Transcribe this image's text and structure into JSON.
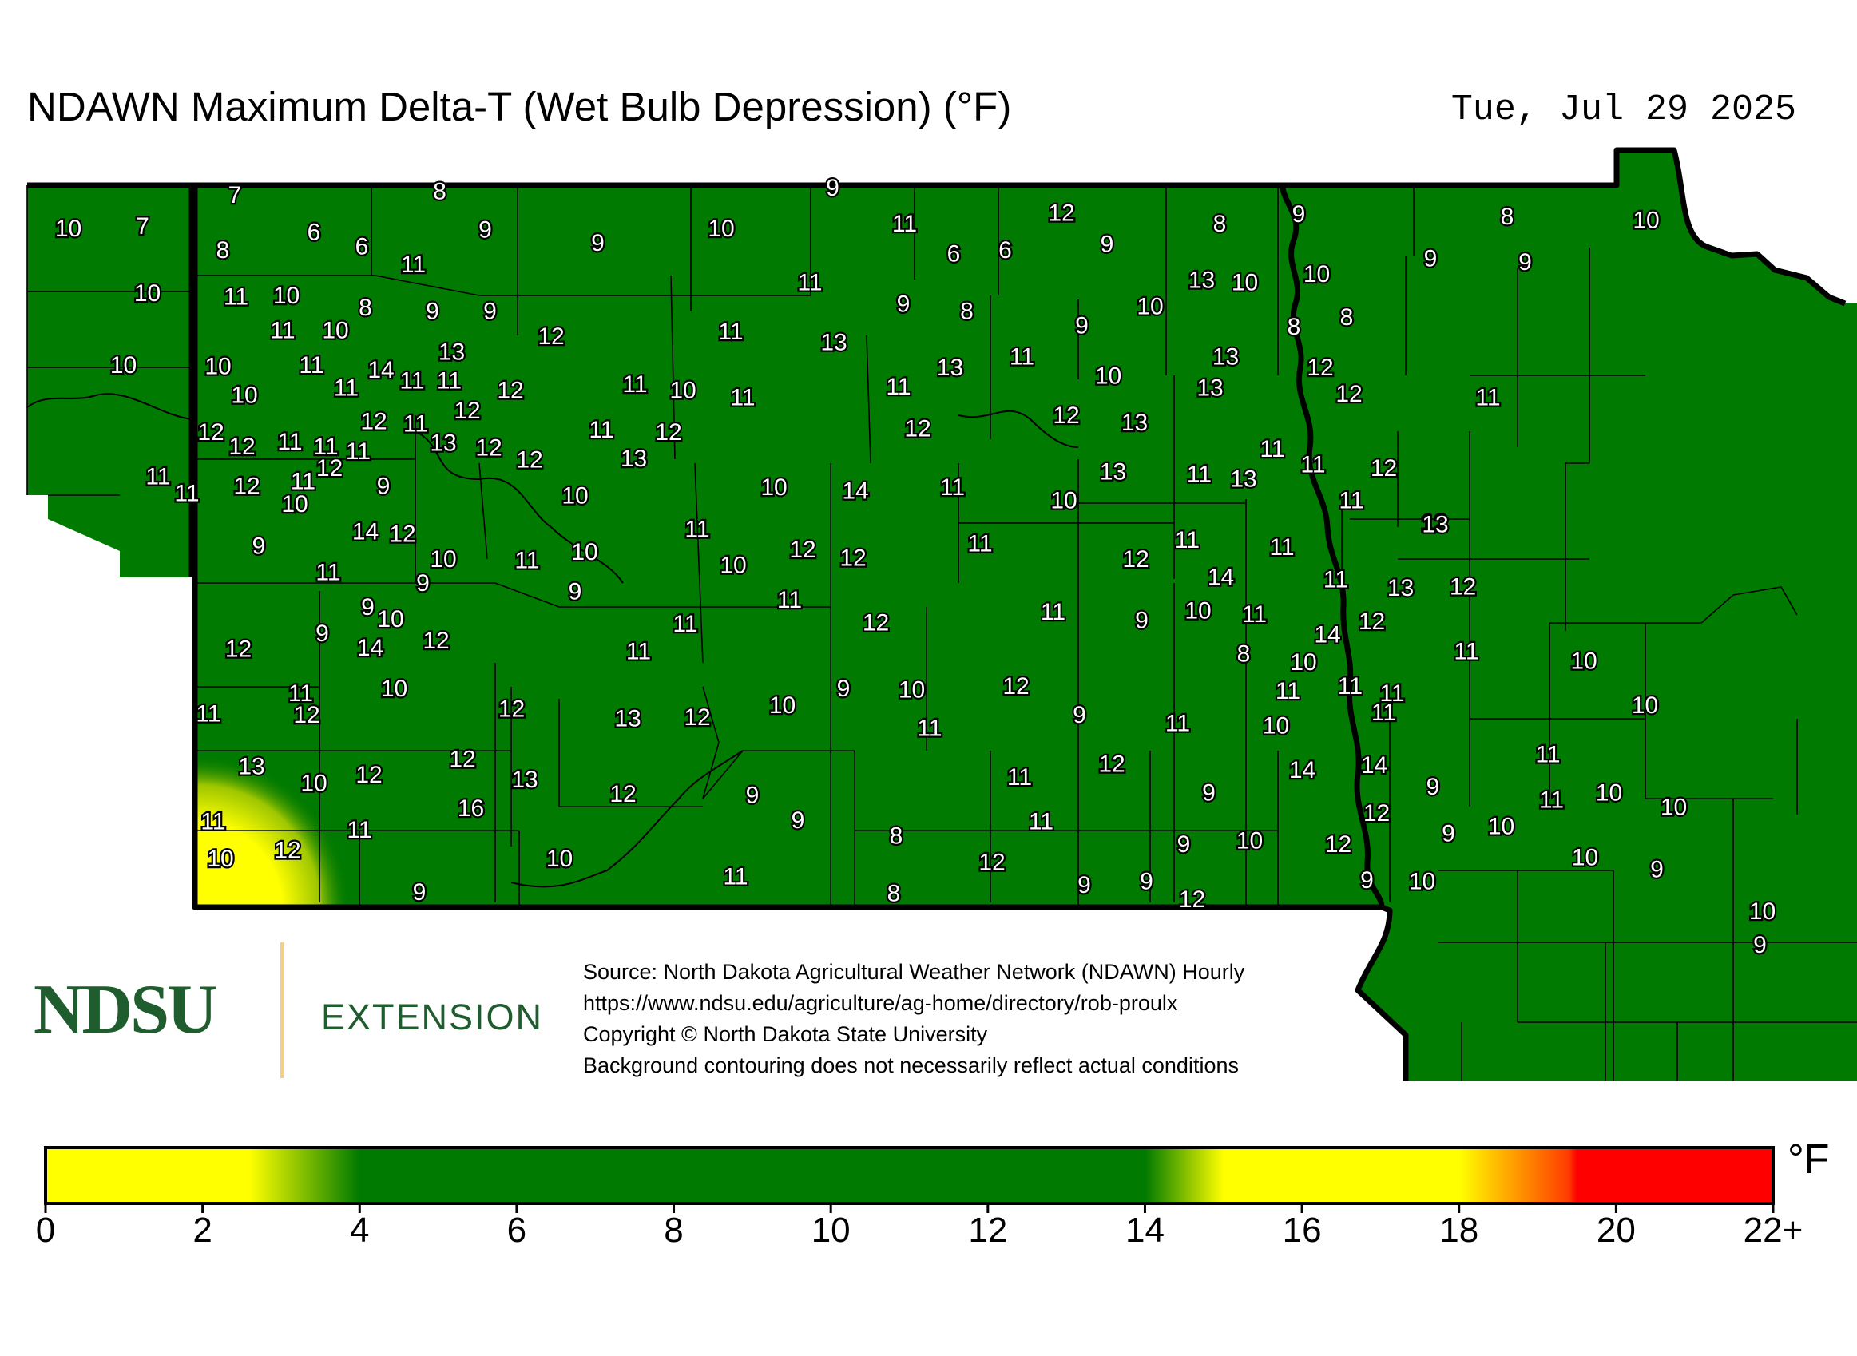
{
  "title": "NDAWN Maximum Delta-T (Wet Bulb Depression) (°F)",
  "date": "Tue, Jul 29 2025",
  "logo": {
    "ndsu": "NDSU",
    "extension": "EXTENSION"
  },
  "source_lines": [
    "Source: North Dakota Agricultural Weather Network (NDAWN) Hourly",
    "https://www.ndsu.edu/agriculture/ag-home/directory/rob-proulx",
    "Copyright © North Dakota State University",
    "Background contouring does not necessarily reflect actual conditions"
  ],
  "colorbar": {
    "unit": "°F",
    "ticks": [
      "0",
      "2",
      "4",
      "6",
      "8",
      "10",
      "12",
      "14",
      "16",
      "18",
      "20",
      "22+"
    ],
    "range": [
      0,
      22
    ],
    "stops": [
      {
        "value": 0,
        "color": "#ffff00"
      },
      {
        "value": 2.6,
        "color": "#ffff00"
      },
      {
        "value": 4,
        "color": "#007a00"
      },
      {
        "value": 14,
        "color": "#007a00"
      },
      {
        "value": 15,
        "color": "#ffff00"
      },
      {
        "value": 18,
        "color": "#ffff00"
      },
      {
        "value": 19.4,
        "color": "#ff3b00"
      },
      {
        "value": 19.5,
        "color": "#ff0000"
      },
      {
        "value": 22,
        "color": "#ff0000"
      }
    ]
  },
  "colors": {
    "background_field": "#007a00",
    "hot_spot": "#ffff00",
    "boundary": "#000000"
  },
  "station_values": [
    "7",
    "8",
    "9",
    "10",
    "7",
    "6",
    "6",
    "8",
    "9",
    "9",
    "10",
    "11",
    "12",
    "8",
    "8",
    "9",
    "9",
    "6",
    "6",
    "10",
    "9",
    "9",
    "11",
    "11",
    "10",
    "13",
    "10",
    "10",
    "11",
    "10",
    "9",
    "8",
    "8",
    "9",
    "9",
    "10",
    "11",
    "12",
    "11",
    "13",
    "10",
    "8",
    "8",
    "9",
    "10",
    "10",
    "11",
    "14",
    "13",
    "11",
    "11",
    "12",
    "11",
    "10",
    "11",
    "11",
    "11",
    "13",
    "11",
    "10",
    "13",
    "13",
    "12",
    "12",
    "11",
    "10",
    "12",
    "11",
    "12",
    "12",
    "13",
    "12",
    "13",
    "11",
    "11",
    "11",
    "12",
    "12",
    "12",
    "11",
    "12",
    "12",
    "13",
    "11",
    "11",
    "12",
    "11",
    "13",
    "11",
    "11",
    "12",
    "12",
    "11",
    "10",
    "9",
    "10",
    "10",
    "14",
    "11",
    "10",
    "11",
    "13",
    "12",
    "11",
    "13",
    "14",
    "12",
    "9",
    "10",
    "11",
    "11",
    "10",
    "9",
    "9",
    "10",
    "12",
    "12",
    "11",
    "12",
    "11",
    "11",
    "14",
    "11",
    "13",
    "12",
    "9",
    "10",
    "9",
    "12",
    "11",
    "11",
    "12",
    "11",
    "10",
    "11",
    "9",
    "14",
    "12",
    "12",
    "14",
    "11",
    "11",
    "8",
    "10",
    "10",
    "11",
    "10",
    "9",
    "10",
    "12",
    "11",
    "11",
    "11",
    "11",
    "12",
    "12",
    "13",
    "12",
    "10",
    "11",
    "9",
    "11",
    "10",
    "11",
    "10",
    "13",
    "12",
    "10",
    "12",
    "13",
    "12",
    "14",
    "14",
    "12",
    "11",
    "9",
    "9",
    "11",
    "9",
    "10",
    "11",
    "10",
    "11",
    "11",
    "12",
    "16",
    "12",
    "9",
    "11",
    "8",
    "9",
    "10",
    "9",
    "10",
    "10",
    "9",
    "10",
    "11",
    "12",
    "8",
    "9",
    "9",
    "12",
    "12",
    "9",
    "10",
    "10",
    "9",
    "10",
    "9"
  ]
}
